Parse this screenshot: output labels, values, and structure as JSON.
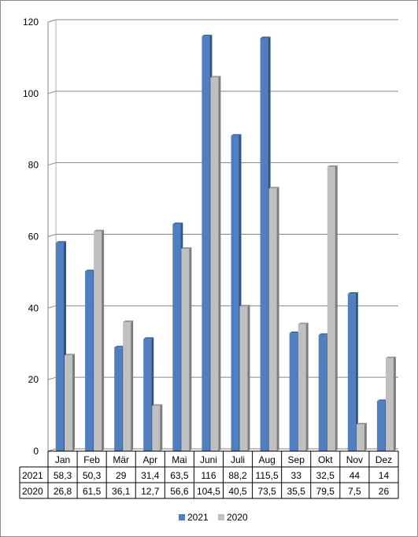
{
  "chart_data": {
    "type": "bar",
    "categories": [
      "Jan",
      "Feb",
      "Mär",
      "Apr",
      "Mai",
      "Juni",
      "Juli",
      "Aug",
      "Sep",
      "Okt",
      "Nov",
      "Dez"
    ],
    "series": [
      {
        "name": "2021",
        "color": "#4f7fc1",
        "values": [
          58.3,
          50.3,
          29,
          31.4,
          63.5,
          116,
          88.2,
          115.5,
          33,
          32.5,
          44,
          14
        ],
        "labels": [
          "58,3",
          "50,3",
          "29",
          "31,4",
          "63,5",
          "116",
          "88,2",
          "115,5",
          "33",
          "32,5",
          "44",
          "14"
        ]
      },
      {
        "name": "2020",
        "color": "#c0c0c0",
        "values": [
          26.8,
          61.5,
          36.1,
          12.7,
          56.6,
          104.5,
          40.5,
          73.5,
          35.5,
          79.5,
          7.5,
          26
        ],
        "labels": [
          "26,8",
          "61,5",
          "36,1",
          "12,7",
          "56,6",
          "104,5",
          "40,5",
          "73,5",
          "35,5",
          "79,5",
          "7,5",
          "26"
        ]
      }
    ],
    "yticks": [
      "0",
      "20",
      "40",
      "60",
      "80",
      "100",
      "120"
    ],
    "ylim": [
      0,
      120
    ],
    "grid": true,
    "legend": "bottom",
    "data_table": true
  }
}
